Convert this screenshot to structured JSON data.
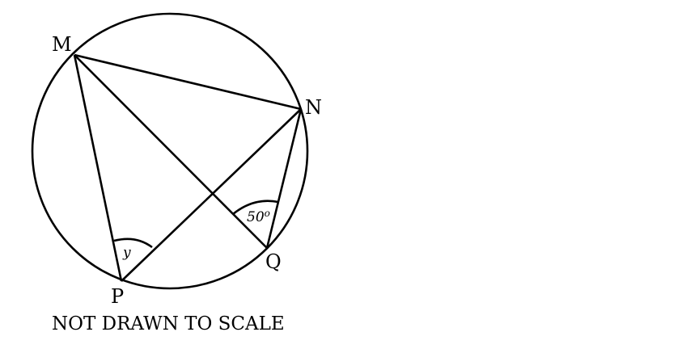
{
  "points": {
    "M": "M",
    "N": "N",
    "P": "P",
    "Q": "Q"
  },
  "angles": {
    "at_Q": "50",
    "at_Q_degree_mark": "o",
    "at_P": "y"
  },
  "note": "NOT DRAWN TO SCALE",
  "colors": {
    "stroke": "#000000",
    "background": "#ffffff"
  }
}
